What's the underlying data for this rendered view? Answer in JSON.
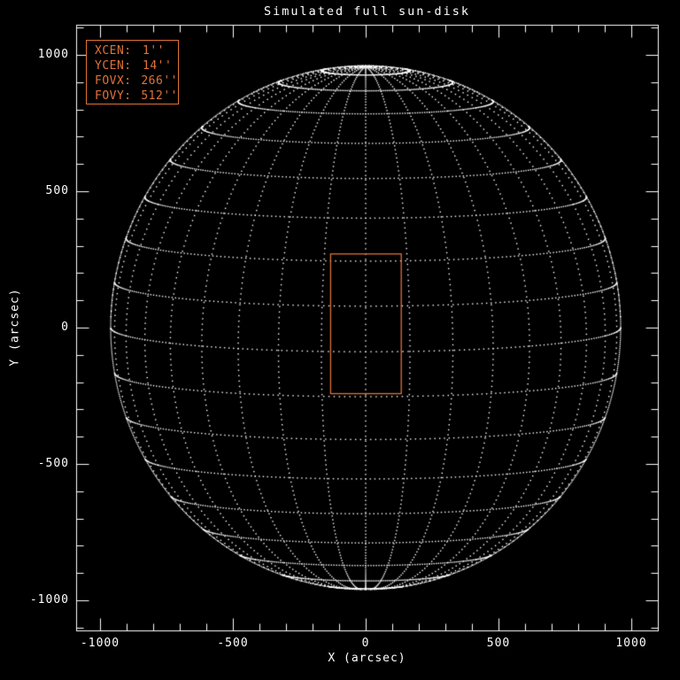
{
  "colors": {
    "background": "#000000",
    "foreground": "#ffffff",
    "accent": "#e07238"
  },
  "legend": {
    "items": [
      {
        "label": "XCEN:",
        "value": "1''"
      },
      {
        "label": "YCEN:",
        "value": "14''"
      },
      {
        "label": "FOVX:",
        "value": "266''"
      },
      {
        "label": "FOVY:",
        "value": "512''"
      }
    ]
  },
  "chart_data": {
    "type": "line",
    "title": "Simulated full sun-disk",
    "xlabel": "X (arcsec)",
    "ylabel": "Y (arcsec)",
    "grid": false,
    "background": "#000000",
    "axis_color": "#ffffff",
    "x_axis": {
      "label": "X (arcsec)",
      "range": [
        -1090,
        1100
      ],
      "tick_values": [
        -1000,
        -500,
        0,
        500,
        1000
      ],
      "tick_labels": [
        "-1000",
        "-500",
        "0",
        "500",
        "1000"
      ],
      "minor_step": 100
    },
    "y_axis": {
      "label": "Y (arcsec)",
      "range": [
        -1110,
        1110
      ],
      "tick_values": [
        -1000,
        -500,
        0,
        500,
        1000
      ],
      "tick_labels": [
        "-1000",
        "-500",
        "0",
        "500",
        "1000"
      ],
      "minor_step": 100
    },
    "sun_disk": {
      "description": "dotted orthographic wireframe of the solar sphere with heliographic grid",
      "radius_arcsec": 960,
      "b0_tilt_deg": 5.3,
      "lat_step_deg": 10,
      "lon_step_deg": 10,
      "lat_range_deg": [
        -80,
        80
      ],
      "dot_color": "#ffffff",
      "line_style": "dotted"
    },
    "fov_rect": {
      "xcen_arcsec": 1,
      "ycen_arcsec": 14,
      "fovx_arcsec": 266,
      "fovy_arcsec": 512,
      "color": "#e07238"
    }
  }
}
